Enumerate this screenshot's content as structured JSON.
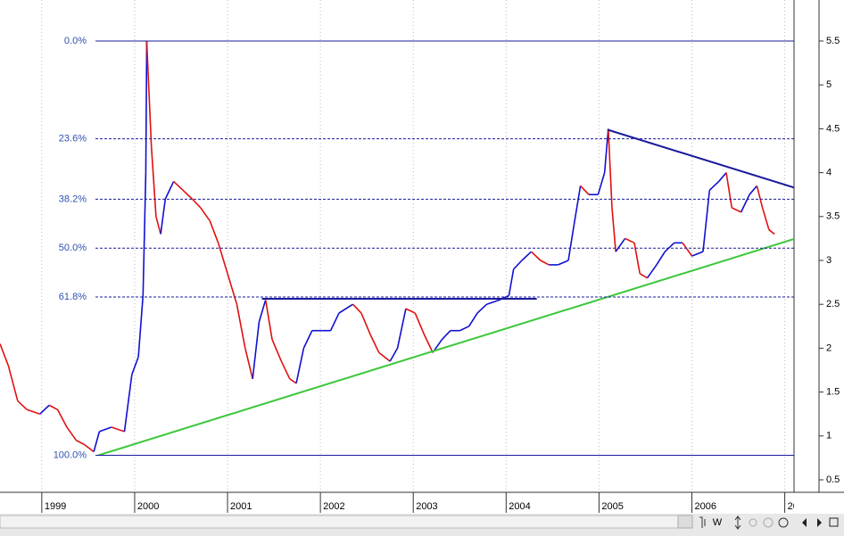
{
  "chart_data": {
    "type": "line",
    "x": [
      1998.55,
      1998.64,
      1998.74,
      1998.84,
      1998.98,
      1999.08,
      1999.17,
      1999.27,
      1999.37,
      1999.46,
      1999.56,
      1999.62,
      1999.75,
      1999.89,
      1999.97,
      2000.04,
      2000.09,
      2000.12,
      2000.13,
      2000.18,
      2000.23,
      2000.28,
      2000.33,
      2000.42,
      2000.52,
      2000.62,
      2000.71,
      2000.81,
      2000.9,
      2001.0,
      2001.1,
      2001.19,
      2001.27,
      2001.34,
      2001.41,
      2001.48,
      2001.58,
      2001.67,
      2001.74,
      2001.82,
      2001.91,
      2002.01,
      2002.11,
      2002.2,
      2002.35,
      2002.44,
      2002.54,
      2002.63,
      2002.75,
      2002.83,
      2002.92,
      2003.02,
      2003.12,
      2003.21,
      2003.31,
      2003.4,
      2003.5,
      2003.6,
      2003.69,
      2003.79,
      2003.93,
      2004.03,
      2004.08,
      2004.17,
      2004.27,
      2004.37,
      2004.46,
      2004.56,
      2004.67,
      2004.73,
      2004.8,
      2004.89,
      2004.99,
      2005.06,
      2005.1,
      2005.14,
      2005.18,
      2005.28,
      2005.38,
      2005.44,
      2005.52,
      2005.62,
      2005.71,
      2005.81,
      2005.9,
      2006.0,
      2006.12,
      2006.19,
      2006.29,
      2006.37,
      2006.43,
      2006.53,
      2006.62,
      2006.7,
      2006.76,
      2006.83,
      2006.89
    ],
    "series": [
      {
        "values": [
          2.05,
          1.8,
          1.4,
          1.3,
          1.25,
          1.35,
          1.3,
          1.1,
          0.95,
          0.9,
          0.82,
          1.05,
          1.1,
          1.05,
          1.7,
          1.9,
          2.6,
          4.0,
          5.5,
          4.3,
          3.5,
          3.3,
          3.7,
          3.9,
          3.8,
          3.7,
          3.6,
          3.45,
          3.2,
          2.85,
          2.5,
          2.0,
          1.65,
          2.3,
          2.55,
          2.1,
          1.85,
          1.65,
          1.6,
          2.0,
          2.2,
          2.2,
          2.2,
          2.4,
          2.5,
          2.4,
          2.15,
          1.95,
          1.85,
          2.0,
          2.45,
          2.4,
          2.15,
          1.95,
          2.1,
          2.2,
          2.2,
          2.25,
          2.4,
          2.5,
          2.55,
          2.6,
          2.9,
          3.0,
          3.1,
          3.0,
          2.95,
          2.95,
          3.0,
          3.4,
          3.85,
          3.75,
          3.75,
          4.0,
          4.5,
          3.6,
          3.1,
          3.25,
          3.2,
          2.85,
          2.8,
          2.95,
          3.1,
          3.2,
          3.2,
          3.05,
          3.1,
          3.8,
          3.9,
          4.0,
          3.6,
          3.55,
          3.75,
          3.85,
          3.6,
          3.35,
          3.3
        ],
        "up_color": "#1010d0",
        "down_color": "#e01010"
      }
    ],
    "xlim": [
      1998.55,
      2007.1
    ],
    "xticks": [
      1999,
      2000,
      2001,
      2002,
      2003,
      2004,
      2005,
      2006,
      {
        "value": 2007,
        "label": "20"
      }
    ],
    "ylim": [
      0.05,
      5.95
    ],
    "yticks": [
      0.5,
      1.0,
      1.5,
      2.0,
      2.5,
      3.0,
      3.5,
      4.0,
      4.5,
      5.0,
      5.5
    ],
    "grid": true,
    "fib_levels": [
      {
        "label": "0.0%",
        "value": 5.5,
        "style": "solid"
      },
      {
        "label": "23.6%",
        "value": 4.386,
        "style": "dashed"
      },
      {
        "label": "38.2%",
        "value": 3.697,
        "style": "dashed"
      },
      {
        "label": "50.0%",
        "value": 3.14,
        "style": "dashed"
      },
      {
        "label": "61.8%",
        "value": 2.583,
        "style": "dashed"
      },
      {
        "label": "100.0%",
        "value": 0.78,
        "style": "solid"
      }
    ],
    "fib_color": "#1a1a9c",
    "trend_lines": [
      {
        "x": [
          1999.61,
          2007.1
        ],
        "y": [
          0.78,
          3.244
        ],
        "color": "#3cc83c"
      },
      {
        "x": [
          2005.09,
          2007.1
        ],
        "y": [
          4.49,
          3.83
        ],
        "color": "#1a1a9c"
      },
      {
        "x": [
          2001.37,
          2004.33
        ],
        "y": [
          2.563,
          2.563
        ],
        "color": "#1a1a9c"
      }
    ],
    "toolbar_label": "W"
  }
}
